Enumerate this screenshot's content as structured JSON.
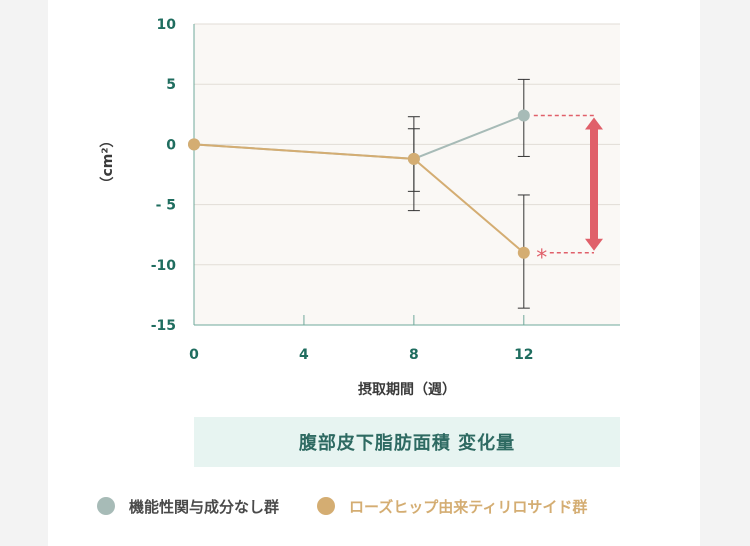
{
  "chart_data": {
    "type": "line",
    "title": "腹部皮下脂肪面積 変化量",
    "xlabel": "摂取期間（週）",
    "ylabel": "（cm²）",
    "xlim": [
      0,
      15.5
    ],
    "ylim": [
      -15,
      10
    ],
    "x_ticks": [
      0,
      4,
      8,
      12
    ],
    "y_ticks": [
      10,
      5,
      0,
      -5,
      -10,
      -15
    ],
    "y_tick_labels": [
      "10",
      "5",
      "0",
      "- 5",
      "-10",
      "-15"
    ],
    "series": [
      {
        "name": "機能性関与成分なし群",
        "color": "#a7bbb7",
        "x": [
          0,
          8,
          12
        ],
        "y": [
          0,
          -1.2,
          2.4
        ],
        "err_low": [
          null,
          -3.9,
          -1.0
        ],
        "err_high": [
          null,
          1.3,
          5.4
        ]
      },
      {
        "name": "ローズヒップ由来ティリロサイド群",
        "color": "#d4ad72",
        "x": [
          0,
          8,
          12
        ],
        "y": [
          0,
          -1.2,
          -9.0
        ],
        "err_low": [
          null,
          -5.5,
          -13.6
        ],
        "err_high": [
          null,
          2.3,
          -4.2
        ]
      }
    ],
    "annotations": [
      {
        "type": "significance",
        "text": "*",
        "x": 12,
        "y_from": 2.4,
        "y_to": -9.0
      }
    ],
    "grid": true,
    "legend": "bottom"
  },
  "colors": {
    "axis_text": "#1f6d5f",
    "plot_bg": "#faf8f5",
    "grid": "#e1ddd6",
    "annotation": "#e0606a"
  }
}
